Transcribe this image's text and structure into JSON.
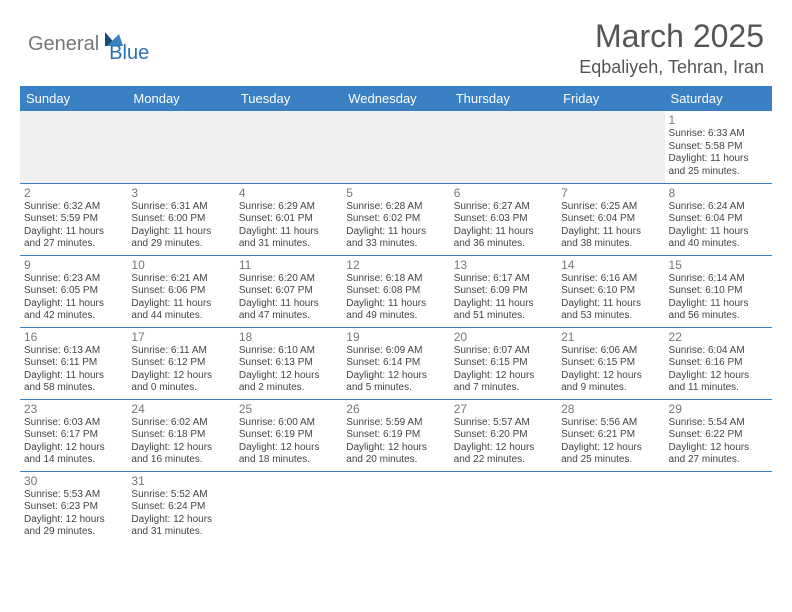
{
  "logo": {
    "part1": "General",
    "part2": "Blue"
  },
  "title": "March 2025",
  "location": "Eqbaliyeh, Tehran, Iran",
  "colors": {
    "header_bg": "#3a80c4",
    "header_text": "#ffffff",
    "text": "#444444",
    "daynum": "#777777",
    "logo_gray": "#777777",
    "logo_blue": "#2b6fb5"
  },
  "weekdays": [
    "Sunday",
    "Monday",
    "Tuesday",
    "Wednesday",
    "Thursday",
    "Friday",
    "Saturday"
  ],
  "grid": [
    [
      null,
      null,
      null,
      null,
      null,
      null,
      {
        "n": "1",
        "sr": "6:33 AM",
        "ss": "5:58 PM",
        "dh": "11",
        "dm": "25"
      }
    ],
    [
      {
        "n": "2",
        "sr": "6:32 AM",
        "ss": "5:59 PM",
        "dh": "11",
        "dm": "27"
      },
      {
        "n": "3",
        "sr": "6:31 AM",
        "ss": "6:00 PM",
        "dh": "11",
        "dm": "29"
      },
      {
        "n": "4",
        "sr": "6:29 AM",
        "ss": "6:01 PM",
        "dh": "11",
        "dm": "31"
      },
      {
        "n": "5",
        "sr": "6:28 AM",
        "ss": "6:02 PM",
        "dh": "11",
        "dm": "33"
      },
      {
        "n": "6",
        "sr": "6:27 AM",
        "ss": "6:03 PM",
        "dh": "11",
        "dm": "36"
      },
      {
        "n": "7",
        "sr": "6:25 AM",
        "ss": "6:04 PM",
        "dh": "11",
        "dm": "38"
      },
      {
        "n": "8",
        "sr": "6:24 AM",
        "ss": "6:04 PM",
        "dh": "11",
        "dm": "40"
      }
    ],
    [
      {
        "n": "9",
        "sr": "6:23 AM",
        "ss": "6:05 PM",
        "dh": "11",
        "dm": "42"
      },
      {
        "n": "10",
        "sr": "6:21 AM",
        "ss": "6:06 PM",
        "dh": "11",
        "dm": "44"
      },
      {
        "n": "11",
        "sr": "6:20 AM",
        "ss": "6:07 PM",
        "dh": "11",
        "dm": "47"
      },
      {
        "n": "12",
        "sr": "6:18 AM",
        "ss": "6:08 PM",
        "dh": "11",
        "dm": "49"
      },
      {
        "n": "13",
        "sr": "6:17 AM",
        "ss": "6:09 PM",
        "dh": "11",
        "dm": "51"
      },
      {
        "n": "14",
        "sr": "6:16 AM",
        "ss": "6:10 PM",
        "dh": "11",
        "dm": "53"
      },
      {
        "n": "15",
        "sr": "6:14 AM",
        "ss": "6:10 PM",
        "dh": "11",
        "dm": "56"
      }
    ],
    [
      {
        "n": "16",
        "sr": "6:13 AM",
        "ss": "6:11 PM",
        "dh": "11",
        "dm": "58"
      },
      {
        "n": "17",
        "sr": "6:11 AM",
        "ss": "6:12 PM",
        "dh": "12",
        "dm": "0"
      },
      {
        "n": "18",
        "sr": "6:10 AM",
        "ss": "6:13 PM",
        "dh": "12",
        "dm": "2"
      },
      {
        "n": "19",
        "sr": "6:09 AM",
        "ss": "6:14 PM",
        "dh": "12",
        "dm": "5"
      },
      {
        "n": "20",
        "sr": "6:07 AM",
        "ss": "6:15 PM",
        "dh": "12",
        "dm": "7"
      },
      {
        "n": "21",
        "sr": "6:06 AM",
        "ss": "6:15 PM",
        "dh": "12",
        "dm": "9"
      },
      {
        "n": "22",
        "sr": "6:04 AM",
        "ss": "6:16 PM",
        "dh": "12",
        "dm": "11"
      }
    ],
    [
      {
        "n": "23",
        "sr": "6:03 AM",
        "ss": "6:17 PM",
        "dh": "12",
        "dm": "14"
      },
      {
        "n": "24",
        "sr": "6:02 AM",
        "ss": "6:18 PM",
        "dh": "12",
        "dm": "16"
      },
      {
        "n": "25",
        "sr": "6:00 AM",
        "ss": "6:19 PM",
        "dh": "12",
        "dm": "18"
      },
      {
        "n": "26",
        "sr": "5:59 AM",
        "ss": "6:19 PM",
        "dh": "12",
        "dm": "20"
      },
      {
        "n": "27",
        "sr": "5:57 AM",
        "ss": "6:20 PM",
        "dh": "12",
        "dm": "22"
      },
      {
        "n": "28",
        "sr": "5:56 AM",
        "ss": "6:21 PM",
        "dh": "12",
        "dm": "25"
      },
      {
        "n": "29",
        "sr": "5:54 AM",
        "ss": "6:22 PM",
        "dh": "12",
        "dm": "27"
      }
    ],
    [
      {
        "n": "30",
        "sr": "5:53 AM",
        "ss": "6:23 PM",
        "dh": "12",
        "dm": "29"
      },
      {
        "n": "31",
        "sr": "5:52 AM",
        "ss": "6:24 PM",
        "dh": "12",
        "dm": "31"
      },
      null,
      null,
      null,
      null,
      null
    ]
  ],
  "labels": {
    "sunrise": "Sunrise:",
    "sunset": "Sunset:",
    "daylight": "Daylight:",
    "hours": "hours",
    "and": "and",
    "minutes": "minutes."
  }
}
